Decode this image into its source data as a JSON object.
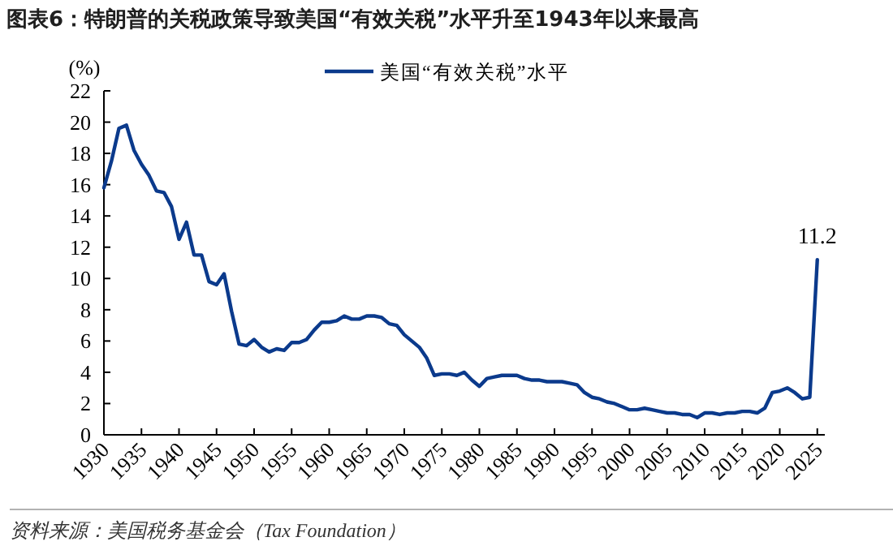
{
  "chart_data": {
    "type": "line",
    "title": "图表6：特朗普的关税政策导致美国“有效关税”水平升至1943年以来最高",
    "ylabel": "(%)",
    "x": [
      1930,
      1931,
      1932,
      1933,
      1934,
      1935,
      1936,
      1937,
      1938,
      1939,
      1940,
      1941,
      1942,
      1943,
      1944,
      1945,
      1946,
      1947,
      1948,
      1949,
      1950,
      1951,
      1952,
      1953,
      1954,
      1955,
      1956,
      1957,
      1958,
      1959,
      1960,
      1961,
      1962,
      1963,
      1964,
      1965,
      1966,
      1967,
      1968,
      1969,
      1970,
      1971,
      1972,
      1973,
      1974,
      1975,
      1976,
      1977,
      1978,
      1979,
      1980,
      1981,
      1982,
      1983,
      1984,
      1985,
      1986,
      1987,
      1988,
      1989,
      1990,
      1991,
      1992,
      1993,
      1994,
      1995,
      1996,
      1997,
      1998,
      1999,
      2000,
      2001,
      2002,
      2003,
      2004,
      2005,
      2006,
      2007,
      2008,
      2009,
      2010,
      2011,
      2012,
      2013,
      2014,
      2015,
      2016,
      2017,
      2018,
      2019,
      2020,
      2021,
      2022,
      2023,
      2024,
      2025
    ],
    "series": [
      {
        "name": "美国“有效关税”水平",
        "color": "#0b3a8c",
        "values": [
          15.8,
          17.5,
          19.6,
          19.8,
          18.2,
          17.3,
          16.6,
          15.6,
          15.5,
          14.6,
          12.5,
          13.6,
          11.5,
          11.5,
          9.8,
          9.6,
          10.3,
          7.9,
          5.8,
          5.7,
          6.1,
          5.6,
          5.3,
          5.5,
          5.4,
          5.9,
          5.9,
          6.1,
          6.7,
          7.2,
          7.2,
          7.3,
          7.6,
          7.4,
          7.4,
          7.6,
          7.6,
          7.5,
          7.1,
          7.0,
          6.4,
          6.0,
          5.6,
          4.9,
          3.8,
          3.9,
          3.9,
          3.8,
          4.0,
          3.5,
          3.1,
          3.6,
          3.7,
          3.8,
          3.8,
          3.8,
          3.6,
          3.5,
          3.5,
          3.4,
          3.4,
          3.4,
          3.3,
          3.2,
          2.7,
          2.4,
          2.3,
          2.1,
          2.0,
          1.8,
          1.6,
          1.6,
          1.7,
          1.6,
          1.5,
          1.4,
          1.4,
          1.3,
          1.3,
          1.1,
          1.4,
          1.4,
          1.3,
          1.4,
          1.4,
          1.5,
          1.5,
          1.4,
          1.7,
          2.7,
          2.8,
          3.0,
          2.7,
          2.3,
          2.4,
          11.2
        ]
      }
    ],
    "xlim": [
      1930,
      2026
    ],
    "xticks": [
      1930,
      1935,
      1940,
      1945,
      1950,
      1955,
      1960,
      1965,
      1970,
      1975,
      1980,
      1985,
      1990,
      1995,
      2000,
      2005,
      2010,
      2015,
      2020,
      2025
    ],
    "ylim": [
      0,
      22
    ],
    "yticks": [
      0,
      2,
      4,
      6,
      8,
      10,
      12,
      14,
      16,
      18,
      20,
      22
    ],
    "legend": "top right",
    "annotations": [
      {
        "text": "11.2",
        "x": 2025,
        "y": 11.2
      },
      "资料来源：美国税务基金会（Tax Foundation）"
    ]
  }
}
